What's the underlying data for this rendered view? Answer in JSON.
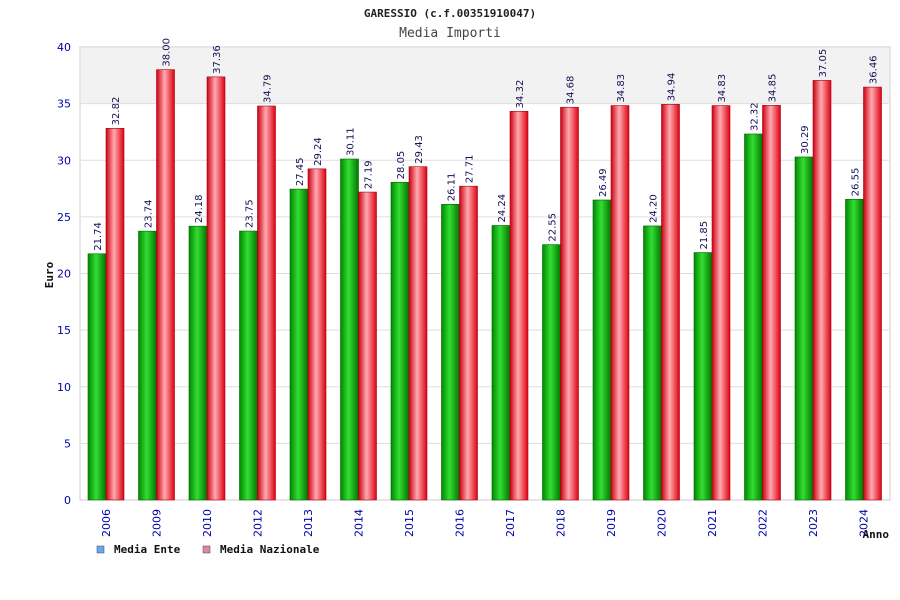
{
  "chart_data": {
    "type": "bar",
    "title": "GARESSIO (c.f.00351910047)",
    "subtitle": "Media Importi",
    "xlabel": "Anno",
    "ylabel": "Euro",
    "ylim": [
      0,
      40
    ],
    "yticks": [
      0,
      5,
      10,
      15,
      20,
      25,
      30,
      35,
      40
    ],
    "grid": true,
    "legend_position": "bottom-left",
    "categories": [
      "2006",
      "2009",
      "2010",
      "2012",
      "2013",
      "2014",
      "2015",
      "2016",
      "2017",
      "2018",
      "2019",
      "2020",
      "2021",
      "2022",
      "2023",
      "2024"
    ],
    "series": [
      {
        "name": "Media Ente",
        "color": "#00aa00",
        "legend_color": "#66aaee",
        "values": [
          21.74,
          23.74,
          24.18,
          23.75,
          27.45,
          30.11,
          28.05,
          26.11,
          24.24,
          22.55,
          26.49,
          24.2,
          21.85,
          32.32,
          30.29,
          26.55
        ],
        "labels": [
          "21.74",
          "23.74",
          "24.18",
          "23.75",
          "27.45",
          "30.11",
          "28.05",
          "26.11",
          "24.24",
          "22.55",
          "26.49",
          "24.20",
          "21.85",
          "32.32",
          "30.29",
          "26.55"
        ]
      },
      {
        "name": "Media Nazionale",
        "color": "#ee1122",
        "legend_color": "#dd88aa",
        "values": [
          32.82,
          38.0,
          37.36,
          34.79,
          29.24,
          27.19,
          29.43,
          27.71,
          34.32,
          34.68,
          34.83,
          34.94,
          34.83,
          34.85,
          37.05,
          36.46
        ],
        "labels": [
          "32.82",
          "38.00",
          "37.36",
          "34.79",
          "29.24",
          "27.19",
          "29.43",
          "27.71",
          "34.32",
          "34.68",
          "34.83",
          "34.94",
          "34.83",
          "34.85",
          "37.05",
          "36.46"
        ]
      }
    ]
  }
}
